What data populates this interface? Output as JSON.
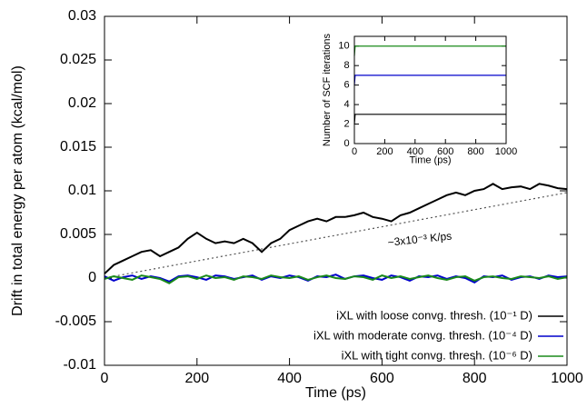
{
  "chart_data": [
    {
      "type": "line",
      "xlabel": "Time (ps)",
      "ylabel": "Drift in total energy per atom (kcal/mol)",
      "xlim": [
        0,
        1000
      ],
      "xticks": [
        0,
        200,
        400,
        600,
        800,
        1000
      ],
      "ylim": [
        -0.01,
        0.03
      ],
      "yticks": [
        -0.01,
        -0.005,
        0,
        0.005,
        0.01,
        0.015,
        0.02,
        0.025,
        0.03
      ],
      "x": [
        0,
        20,
        40,
        60,
        80,
        100,
        120,
        140,
        160,
        180,
        200,
        220,
        240,
        260,
        280,
        300,
        320,
        340,
        360,
        380,
        400,
        420,
        440,
        460,
        480,
        500,
        520,
        540,
        560,
        580,
        600,
        620,
        640,
        660,
        680,
        700,
        720,
        740,
        760,
        780,
        800,
        820,
        840,
        860,
        880,
        900,
        920,
        940,
        960,
        980,
        1000
      ],
      "series": [
        {
          "name": "iXL with loose convg. thresh. (10⁻¹ D)",
          "color": "#000000",
          "values": [
            0.0005,
            0.0015,
            0.002,
            0.0025,
            0.003,
            0.0032,
            0.0025,
            0.003,
            0.0035,
            0.0045,
            0.0052,
            0.0045,
            0.004,
            0.0042,
            0.004,
            0.0045,
            0.004,
            0.003,
            0.004,
            0.0045,
            0.0055,
            0.006,
            0.0065,
            0.0068,
            0.0065,
            0.007,
            0.007,
            0.0072,
            0.0075,
            0.007,
            0.0068,
            0.0065,
            0.0072,
            0.0075,
            0.008,
            0.0085,
            0.009,
            0.0095,
            0.0098,
            0.0095,
            0.01,
            0.0102,
            0.0108,
            0.0102,
            0.0104,
            0.0105,
            0.0102,
            0.0108,
            0.0106,
            0.0103,
            0.0102
          ]
        },
        {
          "name": "iXL with moderate convg. thresh. (10⁻⁴ D)",
          "color": "#0000cc",
          "values": [
            0.0002,
            -0.0003,
            0.0001,
            0.0003,
            -0.0001,
            0.0002,
            0,
            -0.0004,
            0.0002,
            0.0003,
            0.0001,
            -0.0002,
            0.0003,
            0.0002,
            -0.0001,
            0.0001,
            0.0003,
            -0.0002,
            0.0002,
            0,
            0.0003,
            0.0001,
            -0.0003,
            0.0002,
            0.0001,
            0.0004,
            -0.0001,
            0.0002,
            0.0003,
            0,
            -0.0002,
            0.0003,
            0.0001,
            -0.0003,
            0.0002,
            0.0001,
            0.0003,
            -0.0001,
            0.0002,
            0,
            -0.0005,
            0.0002,
            0.0001,
            0.0003,
            -0.0002,
            0.0001,
            0.0002,
            -0.0001,
            0.0003,
            0.0001,
            0.0002
          ]
        },
        {
          "name": "iXL with tight convg. thresh. (10⁻⁶ D)",
          "color": "#1a8a1a",
          "values": [
            -0.0001,
            0.0002,
            0,
            -0.0002,
            0.0003,
            0.0001,
            -0.0001,
            -0.0006,
            0.0001,
            0.0002,
            -0.0001,
            0.0003,
            0,
            0.0001,
            -0.0002,
            0.0002,
            0.0001,
            -0.0001,
            0.0003,
            0.0001,
            0,
            0.0002,
            -0.0002,
            0.0001,
            0.0003,
            0,
            -0.0001,
            0.0002,
            0.0001,
            -0.0002,
            0.0003,
            0,
            0.0002,
            -0.0001,
            0.0001,
            0.0003,
            0,
            -0.0002,
            0.0001,
            0.0002,
            -0.0003,
            0.0001,
            0.0002,
            0,
            -0.0001,
            0.0002,
            0.0001,
            0,
            0.0002,
            -0.0001,
            0.0001
          ]
        }
      ],
      "reference_line": {
        "x": [
          0,
          1000
        ],
        "values": [
          0,
          0.0098
        ],
        "color": "#555555"
      },
      "annotation": "~3x10⁻³ K/ps",
      "legend": "lower right"
    },
    {
      "type": "line",
      "xlabel": "Time (ps)",
      "ylabel": "Number of SCF iterations",
      "xlim": [
        0,
        1000
      ],
      "xticks": [
        0,
        200,
        400,
        600,
        800,
        1000
      ],
      "ylim": [
        0,
        11
      ],
      "yticks": [
        0,
        2,
        4,
        6,
        8,
        10
      ],
      "x": [
        0,
        5,
        1000
      ],
      "series": [
        {
          "color": "#000000",
          "values": [
            2,
            3,
            3
          ]
        },
        {
          "color": "#0000cc",
          "values": [
            6,
            7,
            7
          ]
        },
        {
          "color": "#1a8a1a",
          "values": [
            9,
            10,
            10
          ]
        }
      ]
    }
  ]
}
